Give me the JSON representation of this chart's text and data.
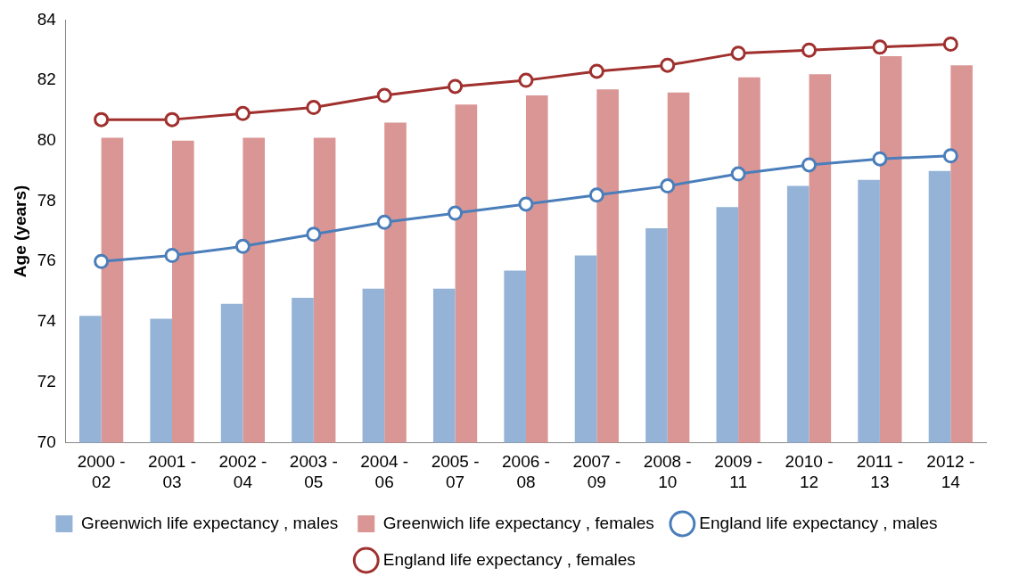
{
  "chart_data": {
    "type": "bar",
    "ylabel": "Age (years)",
    "categories": [
      "2000 - 02",
      "2001 - 03",
      "2002 - 04",
      "2003 - 05",
      "2004 - 06",
      "2005 - 07",
      "2006 - 08",
      "2007 - 09",
      "2008 - 10",
      "2009 - 11",
      "2010 - 12",
      "2011 - 13",
      "2012 - 14"
    ],
    "series": [
      {
        "name": "Greenwich life expectancy , males",
        "color": "#95b3d7",
        "values": [
          74.2,
          74.1,
          74.6,
          74.8,
          75.1,
          75.1,
          75.7,
          76.2,
          77.1,
          77.8,
          78.5,
          78.7,
          79.0
        ]
      },
      {
        "name": "Greenwich life expectancy , females",
        "color": "#da9694",
        "values": [
          80.1,
          80.0,
          80.1,
          80.1,
          80.6,
          81.2,
          81.5,
          81.7,
          81.6,
          82.1,
          82.2,
          82.8,
          82.5
        ]
      },
      {
        "name": "England life expectancy , males",
        "type": "line",
        "color": "#4a7ebb",
        "marker": "circle",
        "values": [
          76.0,
          76.2,
          76.5,
          76.9,
          77.3,
          77.6,
          77.9,
          78.2,
          78.5,
          78.9,
          79.2,
          79.4,
          79.5
        ]
      },
      {
        "name": "England life expectancy , females",
        "type": "line",
        "color": "#a0302e",
        "marker": "circle",
        "values": [
          80.7,
          80.7,
          80.9,
          81.1,
          81.5,
          81.8,
          82.0,
          82.3,
          82.5,
          82.9,
          83.0,
          83.1,
          83.2
        ]
      }
    ],
    "ylim": [
      70,
      84
    ],
    "yticks": [
      70,
      72,
      74,
      76,
      78,
      80,
      82,
      84
    ],
    "grid": false,
    "legend": "bottom"
  }
}
